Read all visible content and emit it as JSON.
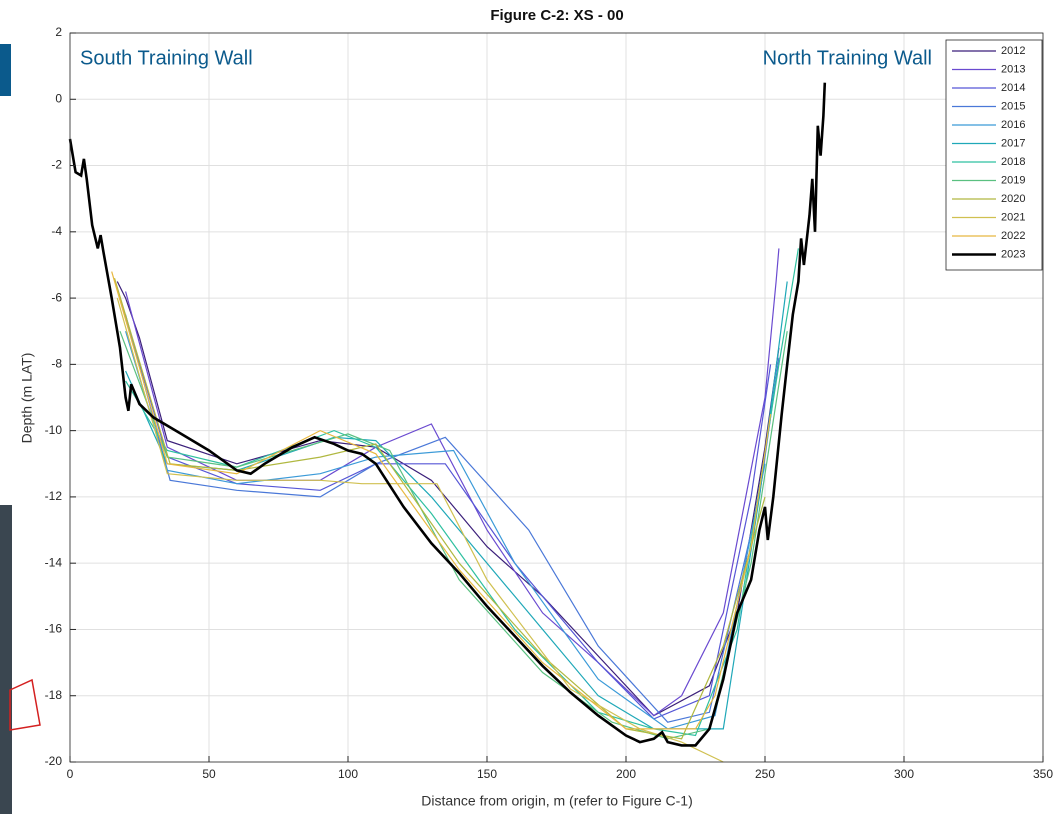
{
  "chart_data": {
    "type": "line",
    "title": "Figure C-2: XS - 00",
    "x_label": "Distance from origin, m (refer to Figure C-1)",
    "y_label": "Depth (m LAT)",
    "annotations": [
      "South Training Wall",
      "North Training Wall"
    ],
    "xlim": [
      0,
      350
    ],
    "xticks": [
      0,
      50,
      100,
      150,
      200,
      250,
      300,
      350
    ],
    "ylim": [
      -20,
      2
    ],
    "yticks": [
      -20,
      -18,
      -16,
      -14,
      -12,
      -10,
      -8,
      -6,
      -4,
      -2,
      0,
      2
    ],
    "grid": true,
    "legend": "upper right",
    "series": [
      {
        "name": "2012",
        "color": "#3b1f7a",
        "x": [
          17,
          20,
          25,
          35,
          60,
          90,
          110,
          130,
          150,
          170,
          190,
          210,
          230,
          240,
          250,
          255
        ],
        "values": [
          -5.5,
          -6,
          -7.2,
          -10.3,
          -11,
          -10.3,
          -10.5,
          -11.5,
          -13.5,
          -15,
          -16.8,
          -18.6,
          -17.7,
          -15.5,
          -10.5,
          -7.5
        ]
      },
      {
        "name": "2013",
        "color": "#6a4ad0",
        "x": [
          20,
          35,
          60,
          90,
          110,
          130,
          150,
          170,
          190,
          210,
          220,
          235,
          250,
          254,
          255
        ],
        "values": [
          -5.8,
          -10.5,
          -11.5,
          -11.5,
          -10.5,
          -9.8,
          -13,
          -15.5,
          -17,
          -18.6,
          -18,
          -15.5,
          -9,
          -5.5,
          -4.5
        ]
      },
      {
        "name": "2014",
        "color": "#5656d6",
        "x": [
          18,
          35,
          60,
          90,
          110,
          135,
          160,
          190,
          210,
          230,
          245,
          252
        ],
        "values": [
          -6,
          -10.8,
          -11.6,
          -11.8,
          -11,
          -11,
          -14,
          -17,
          -18.7,
          -18,
          -12,
          -8
        ]
      },
      {
        "name": "2015",
        "color": "#4a78d8",
        "x": [
          20,
          36,
          60,
          90,
          110,
          135,
          165,
          190,
          215,
          230,
          248,
          255
        ],
        "values": [
          -6.5,
          -11.5,
          -11.8,
          -12,
          -11,
          -10.2,
          -13,
          -16.5,
          -18.8,
          -18.5,
          -12,
          -7.8
        ]
      },
      {
        "name": "2016",
        "color": "#3b9ad8",
        "x": [
          20,
          35,
          60,
          90,
          110,
          138,
          160,
          190,
          215,
          232,
          250
        ],
        "values": [
          -7,
          -11.2,
          -11.6,
          -11.3,
          -10.8,
          -10.6,
          -14,
          -17.5,
          -19,
          -18.6,
          -11
        ]
      },
      {
        "name": "2017",
        "color": "#1fa8b8",
        "x": [
          20,
          35,
          60,
          95,
          110,
          130,
          160,
          190,
          210,
          235,
          248,
          258
        ],
        "values": [
          -8.2,
          -11,
          -11.2,
          -10.2,
          -10.3,
          -12,
          -15,
          -18,
          -19,
          -19,
          -12,
          -5.5
        ]
      },
      {
        "name": "2018",
        "color": "#2fc0a0",
        "x": [
          20,
          35,
          60,
          95,
          110,
          130,
          160,
          190,
          210,
          225,
          240,
          255,
          262
        ],
        "values": [
          -8.5,
          -10.6,
          -11.1,
          -10,
          -10.5,
          -12.5,
          -16,
          -18.5,
          -19,
          -19.2,
          -16,
          -8,
          -4.5
        ]
      },
      {
        "name": "2019",
        "color": "#5ac080",
        "x": [
          18,
          35,
          60,
          100,
          115,
          140,
          170,
          195,
          215,
          230,
          245,
          258
        ],
        "values": [
          -7,
          -10.8,
          -11.1,
          -10.1,
          -10.6,
          -14.5,
          -17.3,
          -18.8,
          -19.3,
          -19,
          -14,
          -7
        ]
      },
      {
        "name": "2020",
        "color": "#b0b840",
        "x": [
          16,
          36,
          60,
          90,
          110,
          140,
          170,
          200,
          220,
          235,
          250
        ],
        "values": [
          -5.4,
          -11,
          -11.2,
          -10.8,
          -10.4,
          -14,
          -16.8,
          -19,
          -19.3,
          -16.5,
          -12
        ]
      },
      {
        "name": "2021",
        "color": "#d0c050",
        "x": [
          17,
          35,
          60,
          90,
          105,
          132,
          150,
          180,
          205,
          220,
          235
        ],
        "values": [
          -6,
          -11.3,
          -11.5,
          -11.5,
          -11.6,
          -11.6,
          -14.5,
          -17.8,
          -19,
          -19.4,
          -20
        ]
      },
      {
        "name": "2022",
        "color": "#e8b840",
        "x": [
          15,
          35,
          60,
          90,
          110,
          140,
          170,
          200,
          225,
          232,
          245,
          252
        ],
        "values": [
          -5.2,
          -11,
          -11.3,
          -10,
          -10.7,
          -14.2,
          -17,
          -19,
          -19,
          -18,
          -13.5,
          -9.5
        ]
      },
      {
        "name": "2023",
        "color": "#000000",
        "x": [
          0,
          2,
          4,
          5,
          6,
          8,
          10,
          11,
          12,
          15,
          18,
          20,
          21,
          22,
          25,
          30,
          40,
          50,
          60,
          65,
          70,
          80,
          88,
          95,
          100,
          105,
          110,
          120,
          130,
          140,
          150,
          160,
          170,
          180,
          190,
          200,
          205,
          210,
          213,
          215,
          220,
          225,
          230,
          235,
          240,
          245,
          248,
          250,
          251,
          253,
          256,
          258,
          260,
          262,
          263,
          264,
          266,
          267,
          268,
          269,
          270,
          271,
          271.5
        ],
        "values": [
          -1.2,
          -2.2,
          -2.3,
          -1.8,
          -2.4,
          -3.8,
          -4.5,
          -4.1,
          -4.6,
          -6,
          -7.5,
          -9,
          -9.4,
          -8.6,
          -9.2,
          -9.6,
          -10.1,
          -10.6,
          -11.2,
          -11.3,
          -11,
          -10.5,
          -10.2,
          -10.4,
          -10.6,
          -10.7,
          -11,
          -12.3,
          -13.4,
          -14.3,
          -15.3,
          -16.2,
          -17.1,
          -17.9,
          -18.6,
          -19.2,
          -19.4,
          -19.3,
          -19.1,
          -19.4,
          -19.5,
          -19.5,
          -19,
          -17.5,
          -15.5,
          -14.5,
          -13,
          -12.3,
          -13.3,
          -12,
          -9.5,
          -8,
          -6.5,
          -5.5,
          -4.2,
          -5,
          -3.5,
          -2.4,
          -4,
          -0.8,
          -1.7,
          -0.5,
          0.5
        ]
      }
    ]
  }
}
